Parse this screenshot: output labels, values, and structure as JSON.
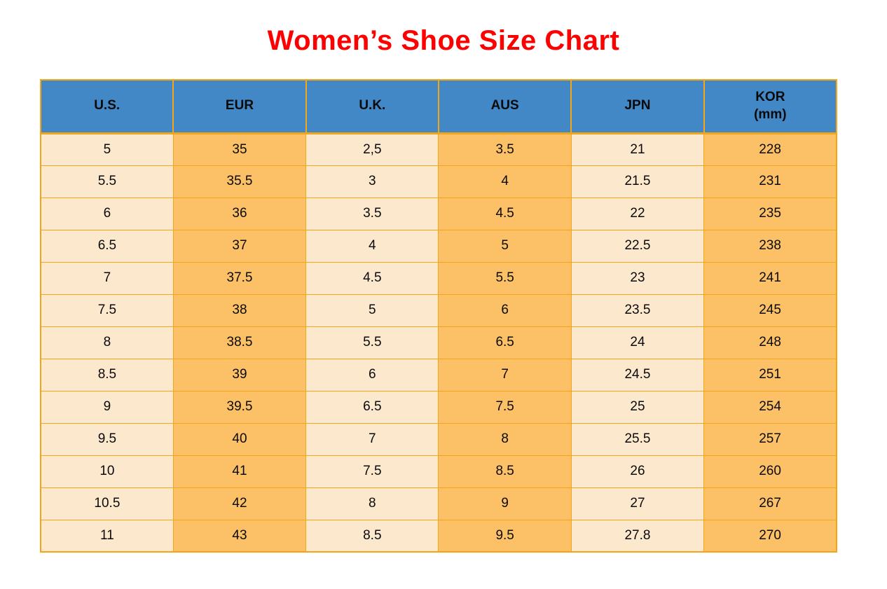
{
  "title": "Women’s Shoe Size Chart",
  "chart_data": {
    "type": "table",
    "title": "Women’s Shoe Size Chart",
    "columns": [
      {
        "label": "U.S.",
        "sub": ""
      },
      {
        "label": "EUR",
        "sub": ""
      },
      {
        "label": "U.K.",
        "sub": ""
      },
      {
        "label": "AUS",
        "sub": ""
      },
      {
        "label": "JPN",
        "sub": ""
      },
      {
        "label": "KOR",
        "sub": "(mm)"
      }
    ],
    "rows": [
      [
        "5",
        "35",
        "2,5",
        "3.5",
        "21",
        "228"
      ],
      [
        "5.5",
        "35.5",
        "3",
        "4",
        "21.5",
        "231"
      ],
      [
        "6",
        "36",
        "3.5",
        "4.5",
        "22",
        "235"
      ],
      [
        "6.5",
        "37",
        "4",
        "5",
        "22.5",
        "238"
      ],
      [
        "7",
        "37.5",
        "4.5",
        "5.5",
        "23",
        "241"
      ],
      [
        "7.5",
        "38",
        "5",
        "6",
        "23.5",
        "245"
      ],
      [
        "8",
        "38.5",
        "5.5",
        "6.5",
        "24",
        "248"
      ],
      [
        "8.5",
        "39",
        "6",
        "7",
        "24.5",
        "251"
      ],
      [
        "9",
        "39.5",
        "6.5",
        "7.5",
        "25",
        "254"
      ],
      [
        "9.5",
        "40",
        "7",
        "8",
        "25.5",
        "257"
      ],
      [
        "10",
        "41",
        "7.5",
        "8.5",
        "26",
        "260"
      ],
      [
        "10.5",
        "42",
        "8",
        "9",
        "27",
        "267"
      ],
      [
        "11",
        "43",
        "8.5",
        "9.5",
        "27.8",
        "270"
      ]
    ]
  },
  "colors": {
    "title_red": "#FE0000",
    "header_blue": "#4288C6",
    "cell_cream": "#FCE9CD",
    "cell_orange": "#FCC167",
    "border_orange": "#F2A517",
    "text_black": "#0A0A0A"
  }
}
